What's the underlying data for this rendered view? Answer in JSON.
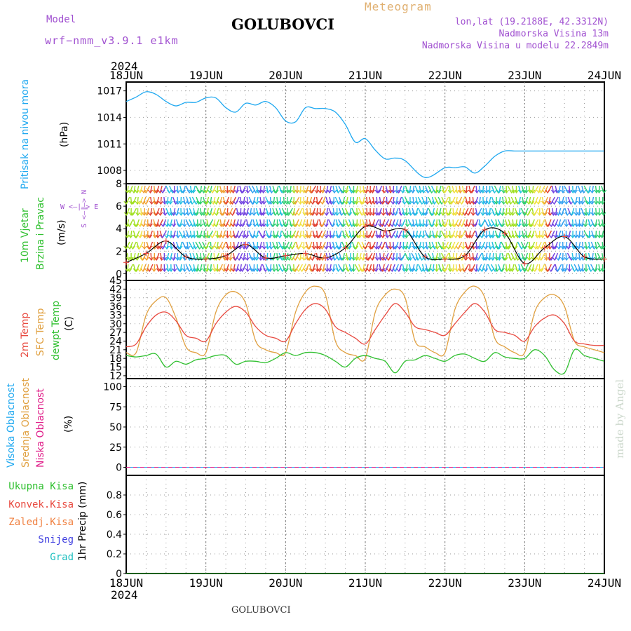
{
  "header": {
    "model_label": "Model",
    "model_name": "wrf−nmm_v3.9.1  e1km",
    "title": "GOLUBOVCI",
    "product": "Meteogram",
    "lonlat": "lon,lat (19.2188E, 42.3312N)",
    "altitude": "Nadmorska Visina 13m",
    "model_altitude": "Nadmorska Visina u modelu 22.2849m",
    "year_top": "2024",
    "year_bottom": "2024",
    "footer": "GOLUBOVCI",
    "credit": "made by Angel"
  },
  "colors": {
    "pressure": "#1ea8f0",
    "temp2m": "#e84a40",
    "sfc_temp": "#e0a040",
    "dewpoint": "#30c030",
    "model": "#a050d0",
    "wind_black": "#000000"
  },
  "legends": {
    "pressure": [
      "Pritisak na nivou mora",
      "(hPa)"
    ],
    "wind": [
      "10m Vjetar",
      "Brzina i Pravac",
      "(m/s)"
    ],
    "compass": [
      "N",
      "S",
      "W",
      "E"
    ],
    "temp": [
      "2m Temp",
      "SFC Temp",
      "dewpt Temp",
      "(C)"
    ],
    "cloud": [
      "Visoka Oblacnost",
      "Srednja Oblacnost",
      "Niska Oblacnost",
      "(%)"
    ],
    "precip": [
      "Ukupna Kisa",
      "Konvek.Kisa",
      "Zaledj.Kisa",
      "Snijeg",
      "Grad"
    ],
    "precip_unit": "1hr Precip (mm)"
  },
  "chart_data": [
    {
      "type": "line",
      "panel": "pressure",
      "x_categories": [
        "18JUN",
        "19JUN",
        "20JUN",
        "21JUN",
        "22JUN",
        "23JUN",
        "24JUN"
      ],
      "x_hours": [
        0,
        3,
        6,
        9,
        12,
        15,
        18,
        21,
        24,
        27,
        30,
        33,
        36,
        39,
        42,
        45,
        48,
        51,
        54,
        57,
        60,
        63,
        66,
        69,
        72,
        75,
        78,
        81,
        84,
        90,
        96,
        99,
        102,
        105,
        108,
        111,
        114,
        117,
        120,
        123,
        126,
        129,
        132,
        135,
        138,
        141,
        144
      ],
      "series": [
        {
          "values": [
            1015.8,
            1016.3,
            1016.9,
            1016.6,
            1015.8,
            1015.3,
            1015.7,
            1015.7,
            1016.2,
            1016.2,
            1015.1,
            1014.6,
            1015.6,
            1015.4,
            1015.8,
            1015.1,
            1013.6,
            1013.5,
            1015.1,
            1015.0,
            1015.0,
            1014.6,
            1013.2,
            1011.2,
            1011.6,
            1010.3,
            1009.3,
            1009.4,
            1009.1,
            1007.2,
            1008.3,
            1008.3,
            1008.4,
            1007.7,
            1008.5,
            1009.6,
            1010.2,
            1010.2,
            1010.2,
            1010.2,
            1010.2,
            1010.2,
            1010.2,
            1010.2,
            1010.2,
            1010.2,
            1010.2
          ]
        }
      ],
      "yticks": [
        1008,
        1011,
        1014,
        1017
      ],
      "ylim": [
        1006.5,
        1018
      ],
      "grid": true
    },
    {
      "type": "line",
      "panel": "wind",
      "x_categories": [
        "18JUN",
        "19JUN",
        "20JUN",
        "21JUN",
        "22JUN",
        "23JUN",
        "24JUN"
      ],
      "x_hours": [
        0,
        6,
        12,
        18,
        24,
        30,
        36,
        42,
        48,
        54,
        60,
        66,
        72,
        78,
        84,
        90,
        96,
        102,
        108,
        114,
        120,
        126,
        132,
        138,
        144
      ],
      "series": [
        {
          "values": [
            1.0,
            1.8,
            2.9,
            1.5,
            1.3,
            1.6,
            2.6,
            1.4,
            1.6,
            1.8,
            1.4,
            2.3,
            4.2,
            3.8,
            3.9,
            1.5,
            1.3,
            1.6,
            3.9,
            3.6,
            0.9,
            2.3,
            3.3,
            1.5,
            1.3
          ]
        }
      ],
      "yticks": [
        0,
        2,
        4,
        6,
        8
      ],
      "ylim": [
        -0.6,
        8
      ],
      "grid": true
    },
    {
      "type": "line",
      "panel": "temperature",
      "x_categories": [
        "18JUN",
        "19JUN",
        "20JUN",
        "21JUN",
        "22JUN",
        "23JUN",
        "24JUN"
      ],
      "x_hours": [
        0,
        3,
        6,
        9,
        12,
        15,
        18,
        21,
        24,
        27,
        30,
        33,
        36,
        39,
        42,
        45,
        48,
        51,
        54,
        57,
        60,
        63,
        66,
        69,
        72,
        75,
        78,
        81,
        84,
        87,
        90,
        93,
        96,
        99,
        102,
        105,
        108,
        111,
        114,
        117,
        120,
        123,
        126,
        129,
        132,
        135,
        138,
        141,
        144
      ],
      "series": [
        {
          "values": [
            22,
            23,
            29,
            33,
            34,
            31,
            26,
            25,
            24,
            30,
            34,
            36,
            34,
            29,
            26,
            25,
            24,
            30,
            35,
            37,
            35,
            29,
            27,
            25,
            23,
            28,
            33,
            37,
            34,
            29,
            28,
            27,
            26,
            30,
            34,
            37,
            34,
            28,
            27,
            26,
            24,
            29,
            32,
            33,
            30,
            24,
            23,
            22.5,
            22.5
          ]
        },
        {
          "values": [
            20,
            20,
            33,
            38,
            39,
            32,
            22,
            20,
            20,
            34,
            40,
            41,
            37,
            24,
            21,
            20,
            20,
            34,
            41,
            43,
            40,
            24,
            20,
            19,
            18,
            34,
            40,
            42,
            39,
            24,
            22,
            20,
            20,
            35,
            41,
            43,
            39,
            25,
            22,
            20,
            20,
            34,
            39,
            40,
            36,
            24,
            22,
            21,
            20
          ]
        },
        {
          "values": [
            19,
            18.5,
            19,
            19.5,
            15,
            17,
            16,
            17.5,
            18,
            19,
            19,
            16,
            17,
            17,
            16.5,
            18,
            20,
            19,
            20,
            20,
            19,
            17,
            15,
            18,
            19,
            18,
            17,
            13,
            17,
            17.5,
            19,
            18,
            17,
            19,
            19.5,
            18,
            17,
            20,
            18.5,
            18,
            18,
            21,
            19,
            14,
            13,
            21,
            19,
            18,
            17
          ]
        }
      ],
      "yticks": [
        12,
        15,
        18,
        21,
        24,
        27,
        30,
        33,
        36,
        39,
        42,
        45
      ],
      "ylim": [
        11,
        45
      ],
      "grid": true
    },
    {
      "type": "line",
      "panel": "cloud",
      "x_categories": [
        "18JUN",
        "19JUN",
        "20JUN",
        "21JUN",
        "22JUN",
        "23JUN",
        "24JUN"
      ],
      "series": [
        {
          "values": [
            0,
            0,
            0,
            0,
            0,
            0,
            0
          ]
        }
      ],
      "yticks": [
        0,
        25,
        50,
        75,
        100
      ],
      "ylim": [
        -10,
        110
      ],
      "grid": true
    },
    {
      "type": "line",
      "panel": "precip",
      "x_categories": [
        "18JUN",
        "19JUN",
        "20JUN",
        "21JUN",
        "22JUN",
        "23JUN",
        "24JUN"
      ],
      "series": [
        {
          "values": [
            0,
            0,
            0,
            0,
            0,
            0,
            0
          ]
        }
      ],
      "yticks": [
        0,
        0.2,
        0.4,
        0.6,
        0.8
      ],
      "ylim": [
        0,
        1.0
      ],
      "grid": true
    }
  ]
}
